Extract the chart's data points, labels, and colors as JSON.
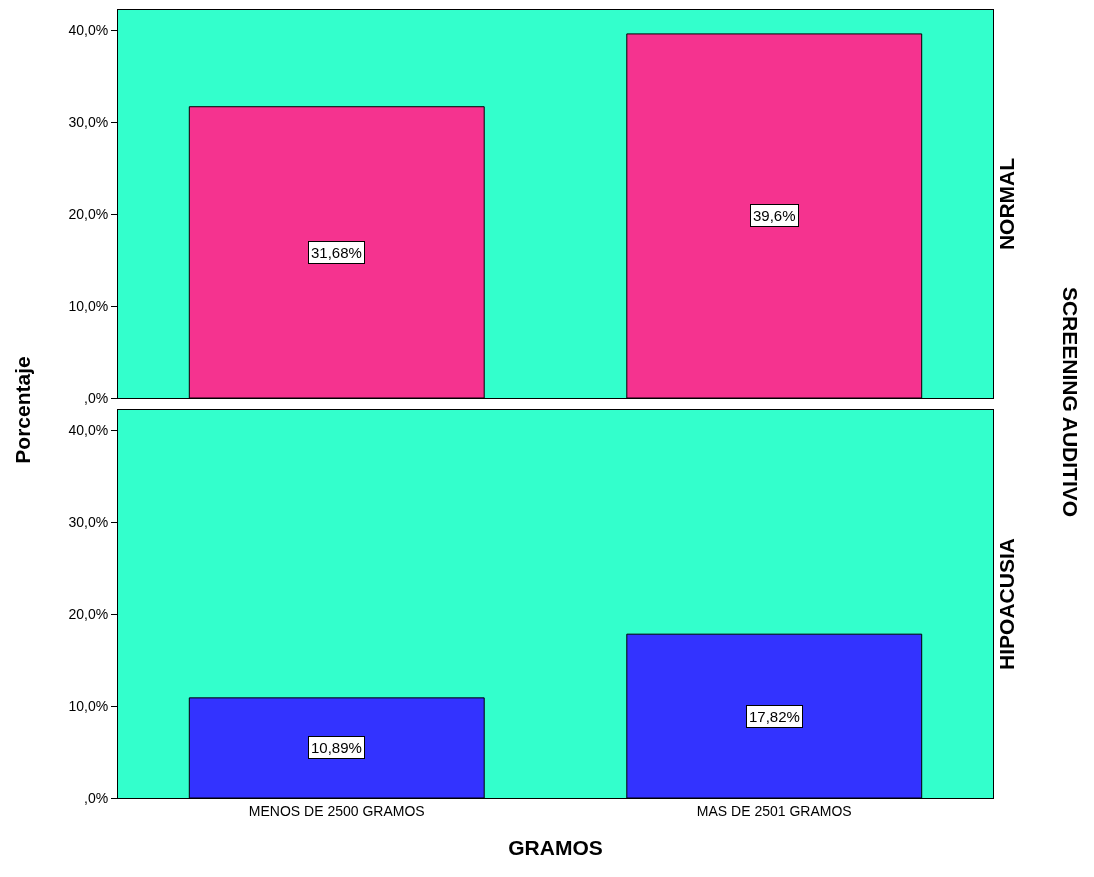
{
  "chart_data": [
    {
      "type": "bar",
      "y2label": "NORMAL",
      "ylabel": "Porcentaje",
      "annotations": [
        "SCREENING AUDITIVO"
      ],
      "categories": [
        null,
        null
      ],
      "values": [
        31.68,
        39.6
      ],
      "value_labels": [
        "31,68%",
        "39,6%"
      ],
      "colors": [
        "#f5338f",
        "#f5338f"
      ],
      "ylim": [
        0,
        42.2
      ],
      "yticks": [
        {
          "value": 0,
          "label": ",0%"
        },
        {
          "value": 10,
          "label": "10,0%"
        },
        {
          "value": 20,
          "label": "20,0%"
        },
        {
          "value": 30,
          "label": "30,0%"
        },
        {
          "value": 40,
          "label": "40,0%"
        }
      ],
      "bands": [
        {
          "axis": "y",
          "from": 0,
          "to": 42.2,
          "color": "#33ffcc"
        }
      ],
      "grid": false,
      "tick_labels": "y"
    },
    {
      "type": "bar",
      "y2label": "HIPOACUSIA",
      "xlabel": "GRAMOS",
      "categories": [
        "MENOS DE 2500 GRAMOS",
        "MAS DE 2501 GRAMOS"
      ],
      "values": [
        10.89,
        17.82
      ],
      "value_labels": [
        "10,89%",
        "17,82%"
      ],
      "colors": [
        "#3333ff",
        "#3333ff"
      ],
      "ylim": [
        0,
        42.2
      ],
      "yticks": [
        {
          "value": 0,
          "label": ",0%"
        },
        {
          "value": 10,
          "label": "10,0%"
        },
        {
          "value": 20,
          "label": "20,0%"
        },
        {
          "value": 30,
          "label": "30,0%"
        },
        {
          "value": 40,
          "label": "40,0%"
        }
      ],
      "bands": [
        {
          "axis": "y",
          "from": 0,
          "to": 42.2,
          "color": "#33ffcc"
        }
      ],
      "grid": false
    }
  ]
}
